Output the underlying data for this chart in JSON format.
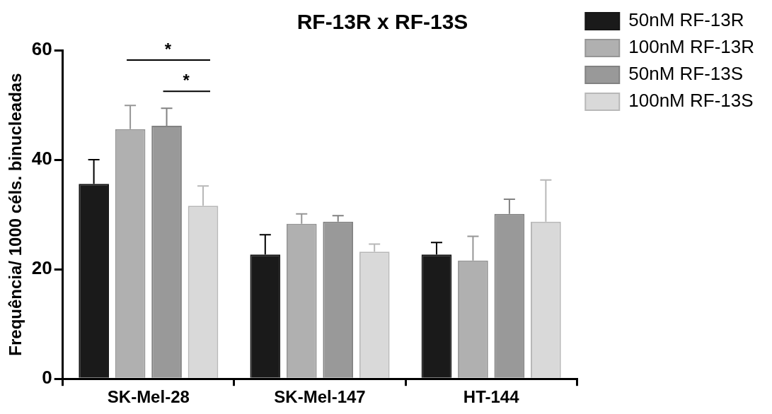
{
  "chart_data": {
    "type": "bar",
    "title": "RF-13R x RF-13S",
    "ylabel": "Frequência/ 1000 céls. binucleadas",
    "categories": [
      "SK-Mel-28",
      "SK-Mel-147",
      "HT-144"
    ],
    "series": [
      {
        "name": "50nM RF-13R",
        "color": "#1a1a1a",
        "values": [
          35.6,
          22.7,
          22.7
        ],
        "errors": [
          [
            35.6,
            40.0
          ],
          [
            22.7,
            26.3
          ],
          [
            22.7,
            24.9
          ]
        ]
      },
      {
        "name": "100nM RF-13R",
        "color": "#b0b0b0",
        "values": [
          45.6,
          28.3,
          21.6
        ],
        "errors": [
          [
            45.6,
            49.9
          ],
          [
            28.3,
            30.1
          ],
          [
            21.6,
            26.0
          ]
        ]
      },
      {
        "name": "50nM RF-13S",
        "color": "#999999",
        "values": [
          46.2,
          28.7,
          30.1
        ],
        "errors": [
          [
            46.2,
            49.4
          ],
          [
            28.7,
            29.8
          ],
          [
            30.1,
            32.8
          ]
        ]
      },
      {
        "name": "100nM RF-13S",
        "color": "#d9d9d9",
        "values": [
          31.6,
          23.2,
          28.7
        ],
        "errors": [
          [
            31.6,
            35.2
          ],
          [
            23.2,
            24.6
          ],
          [
            28.7,
            36.3
          ]
        ]
      }
    ],
    "ylim": [
      0,
      60
    ],
    "yticks": [
      0,
      20,
      40,
      60
    ],
    "grid": false,
    "legend": "right",
    "annotations": [
      "*",
      "*"
    ]
  }
}
